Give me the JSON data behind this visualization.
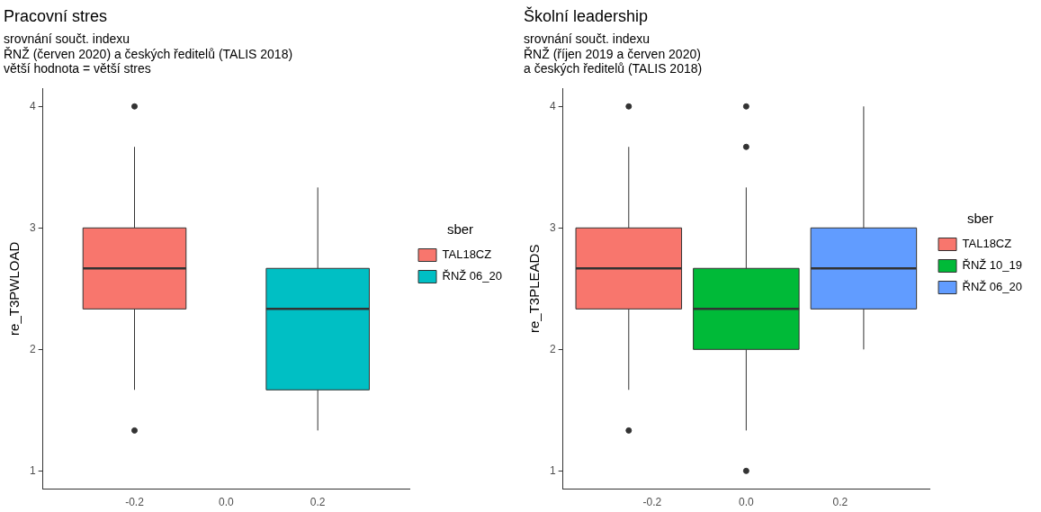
{
  "chart_data": [
    {
      "type": "box",
      "title": "Pracovní stres",
      "subtitle": "srovnání součt. indexu\nŘNŽ (červen 2020) a českých ředitelů (TALIS 2018)\nvětší hodnota = větší stres",
      "ylabel": "re_T3PWLOAD",
      "legend_title": "sber",
      "legend": "right",
      "grid": false,
      "xlim": [
        -0.4,
        0.4
      ],
      "xticks": [
        {
          "value": -0.2,
          "label": "-0.2"
        },
        {
          "value": 0,
          "label": "0.0"
        },
        {
          "value": 0.2,
          "label": "0.2"
        }
      ],
      "ylim": [
        0.85,
        4.15
      ],
      "yticks": [
        1,
        2,
        3,
        4
      ],
      "series": [
        {
          "name": "TAL18CZ",
          "color": "#f8766d",
          "x": [
            -0.2
          ],
          "boxes": [
            {
              "low": 1.667,
              "q1": 2.333,
              "median": 2.667,
              "q3": 3,
              "high": 3.667,
              "outliers": [
                1.333,
                4
              ]
            }
          ]
        },
        {
          "name": "ŘNŽ 06_20",
          "color": "#00bfc4",
          "x": [
            0.2
          ],
          "boxes": [
            {
              "low": 1.333,
              "q1": 1.667,
              "median": 2.333,
              "q3": 2.667,
              "high": 3.333
            }
          ]
        }
      ]
    },
    {
      "type": "box",
      "title": "Školní leadership",
      "subtitle": "srovnání součt. indexu\nŘNŽ (říjen 2019 a červen 2020)\na českých ředitelů (TALIS 2018)",
      "ylabel": "re_T3PLEADS",
      "legend_title": "sber",
      "legend": "right",
      "grid": false,
      "xlim": [
        -0.39,
        0.39
      ],
      "xticks": [
        {
          "value": -0.2,
          "label": "-0.2"
        },
        {
          "value": 0,
          "label": "0.0"
        },
        {
          "value": 0.2,
          "label": "0.2"
        }
      ],
      "ylim": [
        0.85,
        4.15
      ],
      "yticks": [
        1,
        2,
        3,
        4
      ],
      "series": [
        {
          "name": "TAL18CZ",
          "color": "#f8766d",
          "x": [
            -0.25
          ],
          "boxes": [
            {
              "low": 1.667,
              "q1": 2.333,
              "median": 2.667,
              "q3": 3,
              "high": 3.667,
              "outliers": [
                1.333,
                4
              ]
            }
          ]
        },
        {
          "name": "ŘNŽ 10_19",
          "color": "#00ba38",
          "x": [
            0
          ],
          "boxes": [
            {
              "low": 1.333,
              "q1": 2,
              "median": 2.333,
              "q3": 2.667,
              "high": 3.333,
              "outliers": [
                1,
                3.667,
                4
              ]
            }
          ]
        },
        {
          "name": "ŘNŽ 06_20",
          "color": "#619cff",
          "x": [
            0.25
          ],
          "boxes": [
            {
              "low": 2,
              "q1": 2.333,
              "median": 2.667,
              "q3": 3,
              "high": 4
            }
          ]
        }
      ]
    }
  ]
}
